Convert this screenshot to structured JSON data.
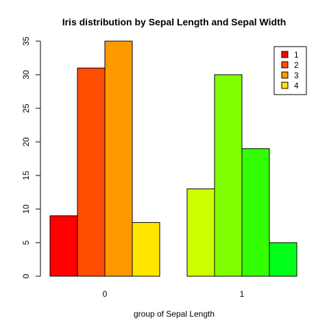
{
  "chart_data": {
    "type": "bar",
    "title": "Iris distribution by Sepal Length and Sepal Width",
    "xlabel": "group of Sepal Length",
    "ylabel": "",
    "categories": [
      "0",
      "1"
    ],
    "ylim": [
      0,
      35
    ],
    "yticks": [
      0,
      5,
      10,
      15,
      20,
      25,
      30,
      35
    ],
    "grid": false,
    "legend_position": "top-right",
    "series": [
      {
        "name": "1",
        "values": [
          9,
          13
        ]
      },
      {
        "name": "2",
        "values": [
          31,
          30
        ]
      },
      {
        "name": "3",
        "values": [
          35,
          19
        ]
      },
      {
        "name": "4",
        "values": [
          8,
          5
        ]
      }
    ],
    "bar_colors": [
      [
        "#FF0000",
        "#FF4D00",
        "#FF9900",
        "#FFE600"
      ],
      [
        "#CCFF00",
        "#80FF00",
        "#33FF00",
        "#00FF19"
      ]
    ],
    "legend_colors": [
      "#FF0000",
      "#FF4D00",
      "#FF9900",
      "#FFE600"
    ]
  }
}
